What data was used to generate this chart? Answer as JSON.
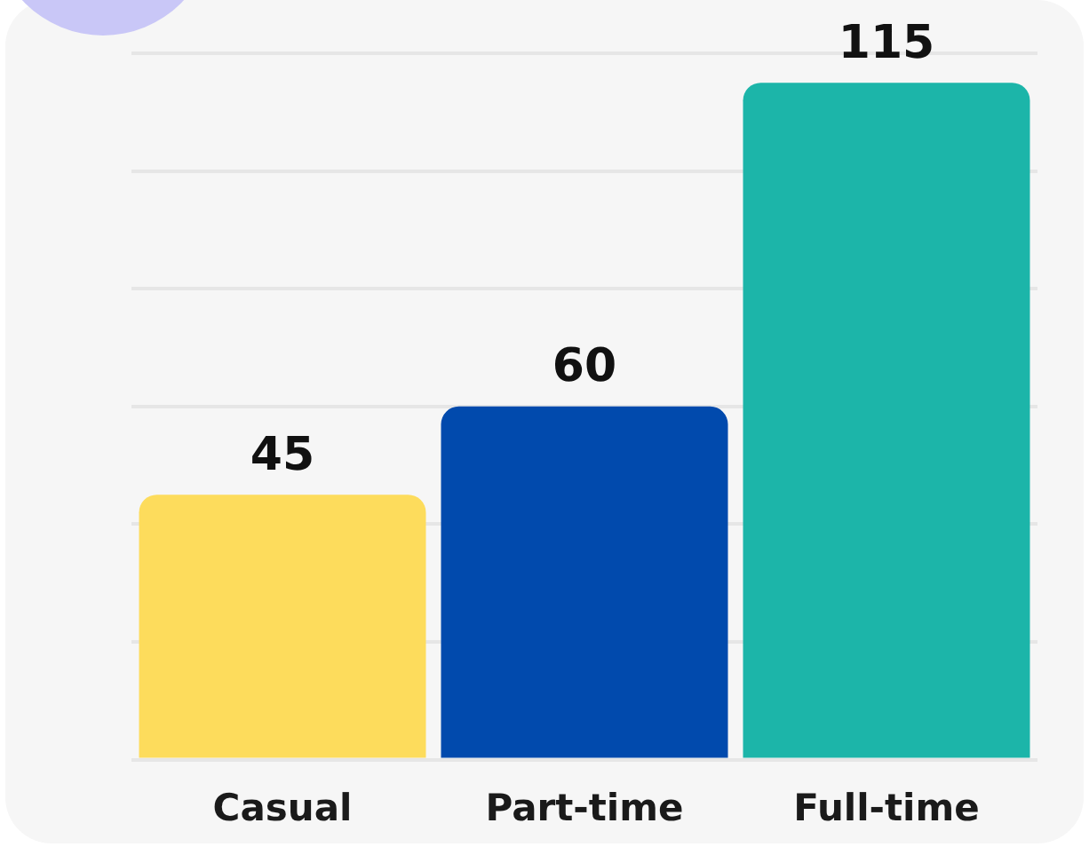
{
  "chart_data": {
    "type": "bar",
    "categories": [
      "Casual",
      "Part-time",
      "Full-time"
    ],
    "values": [
      45,
      60,
      115
    ],
    "colors": [
      "#fddc5c",
      "#014aad",
      "#1cb5a9"
    ],
    "ylim": [
      0,
      120
    ],
    "yticks": [
      {
        "value": 0,
        "label": null
      },
      {
        "value": 20,
        "label": null
      },
      {
        "value": 40,
        "label": null
      },
      {
        "value": 60,
        "label": null
      },
      {
        "value": 80,
        "label": null
      },
      {
        "value": 100,
        "label": null
      },
      {
        "value": 120,
        "label": null
      }
    ],
    "tick_labels": "x",
    "grid": "y",
    "legend": false,
    "data_labels": true
  }
}
